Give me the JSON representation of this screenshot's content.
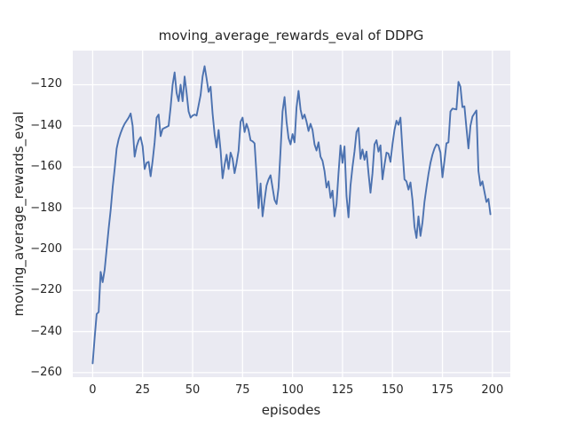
{
  "figure": {
    "title": "moving_average_rewards_eval of DDPG",
    "xlabel": "episodes",
    "ylabel": "moving_average_rewards_eval"
  },
  "chart_data": {
    "type": "line",
    "title": "moving_average_rewards_eval of DDPG",
    "xlabel": "episodes",
    "ylabel": "moving_average_rewards_eval",
    "grid": true,
    "legend": false,
    "background_color": "#eaeaf2",
    "grid_color": "#ffffff",
    "line_color": "#4c72b0",
    "text_color": "#262626",
    "xlim": [
      -9.95,
      208.95
    ],
    "ylim": [
      -262.2,
      -103.4
    ],
    "x_ticks": [
      0,
      25,
      50,
      75,
      100,
      125,
      150,
      175,
      200
    ],
    "x_tick_labels": [
      "0",
      "25",
      "50",
      "75",
      "100",
      "125",
      "150",
      "175",
      "200"
    ],
    "y_ticks": [
      -120,
      -140,
      -160,
      -180,
      -200,
      -220,
      -240,
      -260
    ],
    "y_tick_labels": [
      "−120",
      "−140",
      "−160",
      "−180",
      "−200",
      "−220",
      "−240",
      "−260"
    ],
    "series": [
      {
        "name": "moving_average_rewards_eval",
        "x": [
          0,
          1,
          2,
          3,
          4,
          5,
          6,
          7,
          8,
          9,
          10,
          11,
          12,
          13,
          14,
          15,
          16,
          17,
          18,
          19,
          20,
          21,
          22,
          23,
          24,
          25,
          26,
          27,
          28,
          29,
          30,
          31,
          32,
          33,
          34,
          35,
          36,
          37,
          38,
          39,
          40,
          41,
          42,
          43,
          44,
          45,
          46,
          47,
          48,
          49,
          50,
          51,
          52,
          53,
          54,
          55,
          56,
          57,
          58,
          59,
          60,
          61,
          62,
          63,
          64,
          65,
          66,
          67,
          68,
          69,
          70,
          71,
          72,
          73,
          74,
          75,
          76,
          77,
          78,
          79,
          80,
          81,
          82,
          83,
          84,
          85,
          86,
          87,
          88,
          89,
          90,
          91,
          92,
          93,
          94,
          95,
          96,
          97,
          98,
          99,
          100,
          101,
          102,
          103,
          104,
          105,
          106,
          107,
          108,
          109,
          110,
          111,
          112,
          113,
          114,
          115,
          116,
          117,
          118,
          119,
          120,
          121,
          122,
          123,
          124,
          125,
          126,
          127,
          128,
          129,
          130,
          131,
          132,
          133,
          134,
          135,
          136,
          137,
          138,
          139,
          140,
          141,
          142,
          143,
          144,
          145,
          146,
          147,
          148,
          149,
          150,
          151,
          152,
          153,
          154,
          155,
          156,
          157,
          158,
          159,
          160,
          161,
          162,
          163,
          164,
          165,
          166,
          167,
          168,
          169,
          170,
          171,
          172,
          173,
          174,
          175,
          176,
          177,
          178,
          179,
          180,
          181,
          182,
          183,
          184,
          185,
          186,
          187,
          188,
          189,
          190,
          191,
          192,
          193,
          194,
          195,
          196,
          197,
          198,
          199
        ],
        "y": [
          -255.5,
          -243,
          -231.5,
          -230.5,
          -211,
          -216,
          -210,
          -200,
          -190,
          -181,
          -170,
          -161,
          -151,
          -146.5,
          -143.5,
          -141,
          -139,
          -137.5,
          -136,
          -134,
          -140,
          -155,
          -150,
          -147,
          -145.5,
          -150,
          -161,
          -158,
          -157.5,
          -164.5,
          -157,
          -148,
          -136,
          -134.5,
          -145,
          -141.5,
          -141,
          -140.5,
          -140,
          -131,
          -120,
          -114,
          -124,
          -128,
          -120,
          -128,
          -116,
          -124,
          -133,
          -136,
          -135,
          -134.5,
          -135,
          -130,
          -125,
          -116,
          -111,
          -117,
          -123.5,
          -121,
          -134,
          -144,
          -150.5,
          -142,
          -152,
          -165.5,
          -159,
          -154,
          -161,
          -153,
          -156,
          -163,
          -158,
          -152,
          -138,
          -136,
          -143,
          -139,
          -142,
          -147,
          -147.5,
          -148.5,
          -164,
          -180,
          -168,
          -184,
          -176,
          -169,
          -166,
          -164,
          -170,
          -176,
          -178,
          -170,
          -152,
          -133,
          -126,
          -138,
          -146,
          -149,
          -144,
          -148,
          -131,
          -123,
          -132,
          -136.5,
          -134.5,
          -138,
          -142.5,
          -139,
          -142,
          -149,
          -152,
          -148,
          -155,
          -157,
          -162,
          -170,
          -167,
          -175,
          -171.5,
          -184,
          -178,
          -163,
          -149.5,
          -158,
          -150,
          -174,
          -184.5,
          -169,
          -160,
          -152.5,
          -143,
          -141,
          -156,
          -151.5,
          -156.5,
          -152.5,
          -163,
          -172.5,
          -163,
          -149,
          -147,
          -152.5,
          -149.5,
          -166,
          -159,
          -153,
          -153.5,
          -157.5,
          -149,
          -142,
          -137.5,
          -139.5,
          -136,
          -152,
          -166,
          -167,
          -171,
          -167.5,
          -176,
          -189,
          -194.5,
          -184,
          -193.5,
          -187,
          -177,
          -170,
          -163.5,
          -158,
          -154,
          -151,
          -149,
          -149.5,
          -153,
          -165,
          -157,
          -148.5,
          -148,
          -133,
          -131.6,
          -131.8,
          -132,
          -118.6,
          -121,
          -130.9,
          -130.5,
          -141,
          -151,
          -140,
          -135.5,
          -134,
          -132.5,
          -162,
          -169,
          -167,
          -172,
          -177,
          -175.5,
          -183
        ]
      }
    ]
  }
}
